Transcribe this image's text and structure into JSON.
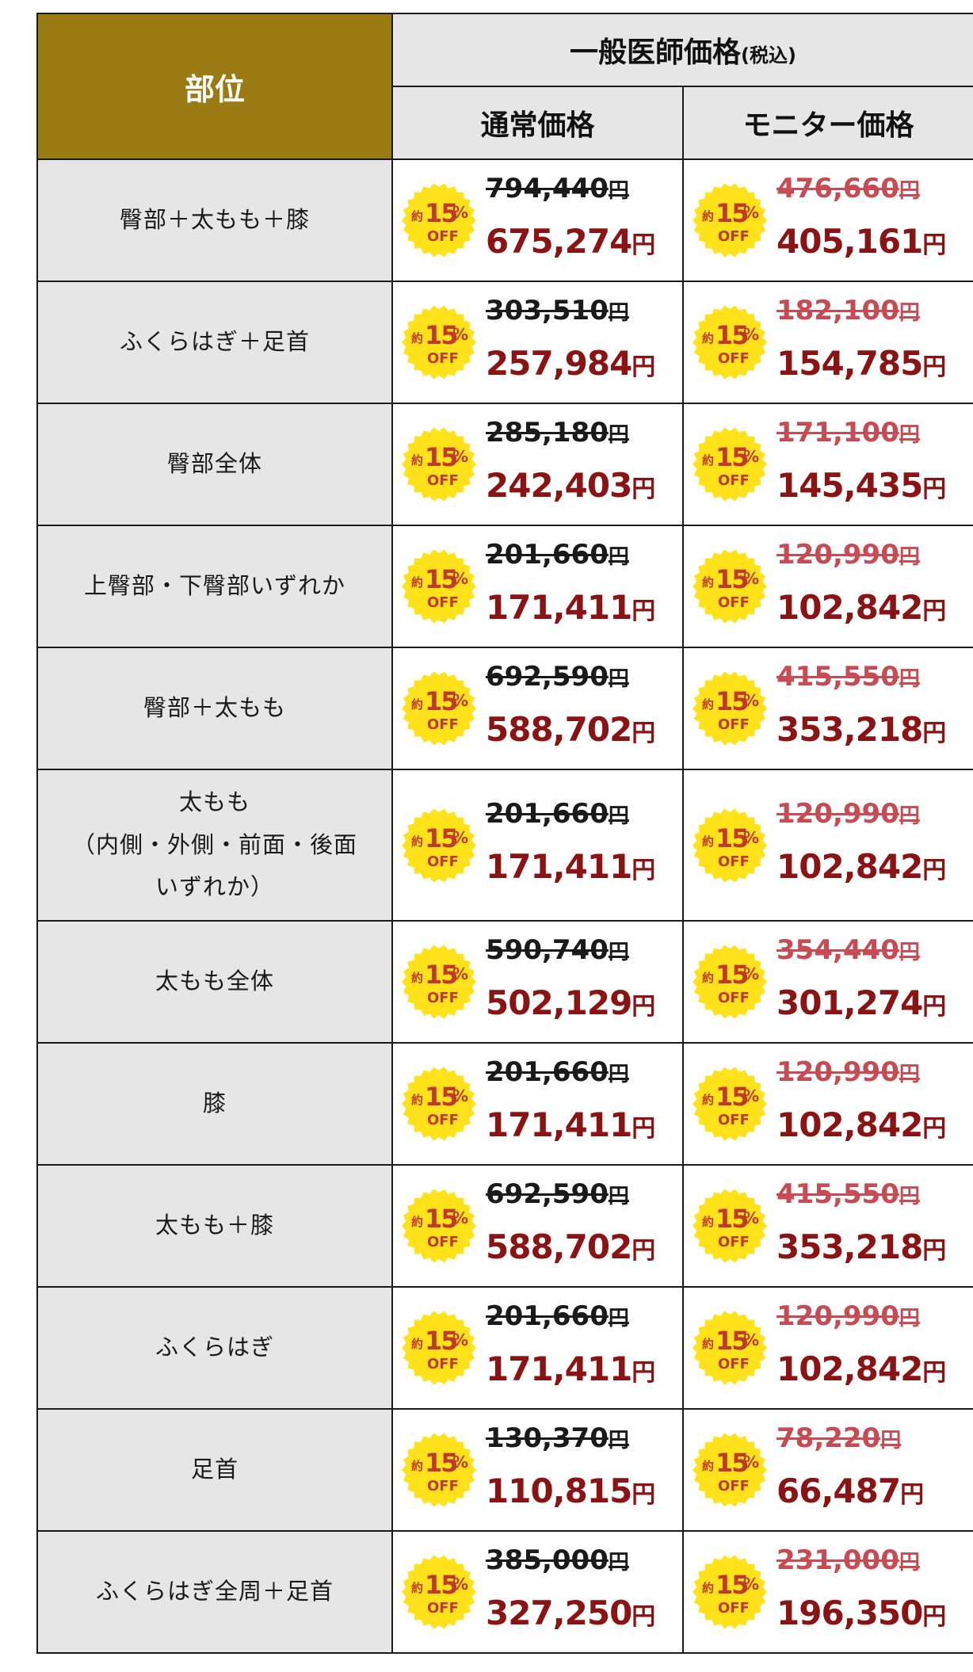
{
  "header": {
    "part_label": "部位",
    "general_label": "一般医師価格",
    "general_tax": "(税込)",
    "regular_label": "通常価格",
    "monitor_label": "モニター価格"
  },
  "badge": {
    "prefix": "約",
    "number": "15",
    "unit": "%",
    "off": "OFF"
  },
  "currency": "円",
  "colors": {
    "header_gold": "#9a7a13",
    "price_red": "#8b1313",
    "monitor_old": "#c84a52",
    "badge_yellow": "#ffe21a"
  },
  "rows": [
    {
      "part": "臀部＋太もも＋膝",
      "regular_old": "794,440",
      "regular_new": "675,274",
      "monitor_old": "476,660",
      "monitor_new": "405,161"
    },
    {
      "part": "ふくらはぎ＋足首",
      "regular_old": "303,510",
      "regular_new": "257,984",
      "monitor_old": "182,100",
      "monitor_new": "154,785"
    },
    {
      "part": "臀部全体",
      "regular_old": "285,180",
      "regular_new": "242,403",
      "monitor_old": "171,100",
      "monitor_new": "145,435"
    },
    {
      "part": "上臀部・下臀部いずれか",
      "regular_old": "201,660",
      "regular_new": "171,411",
      "monitor_old": "120,990",
      "monitor_new": "102,842"
    },
    {
      "part": "臀部＋太もも",
      "regular_old": "692,590",
      "regular_new": "588,702",
      "monitor_old": "415,550",
      "monitor_new": "353,218"
    },
    {
      "part_lines": [
        "太もも",
        "（内側・外側・前面・後面",
        "いずれか）"
      ],
      "regular_old": "201,660",
      "regular_new": "171,411",
      "monitor_old": "120,990",
      "monitor_new": "102,842"
    },
    {
      "part": "太もも全体",
      "regular_old": "590,740",
      "regular_new": "502,129",
      "monitor_old": "354,440",
      "monitor_new": "301,274"
    },
    {
      "part": "膝",
      "regular_old": "201,660",
      "regular_new": "171,411",
      "monitor_old": "120,990",
      "monitor_new": "102,842"
    },
    {
      "part": "太もも＋膝",
      "regular_old": "692,590",
      "regular_new": "588,702",
      "monitor_old": "415,550",
      "monitor_new": "353,218"
    },
    {
      "part": "ふくらはぎ",
      "regular_old": "201,660",
      "regular_new": "171,411",
      "monitor_old": "120,990",
      "monitor_new": "102,842"
    },
    {
      "part": "足首",
      "regular_old": "130,370",
      "regular_new": "110,815",
      "monitor_old": "78,220",
      "monitor_new": "66,487"
    },
    {
      "part": "ふくらはぎ全周＋足首",
      "regular_old": "385,000",
      "regular_new": "327,250",
      "monitor_old": "231,000",
      "monitor_new": "196,350"
    }
  ]
}
